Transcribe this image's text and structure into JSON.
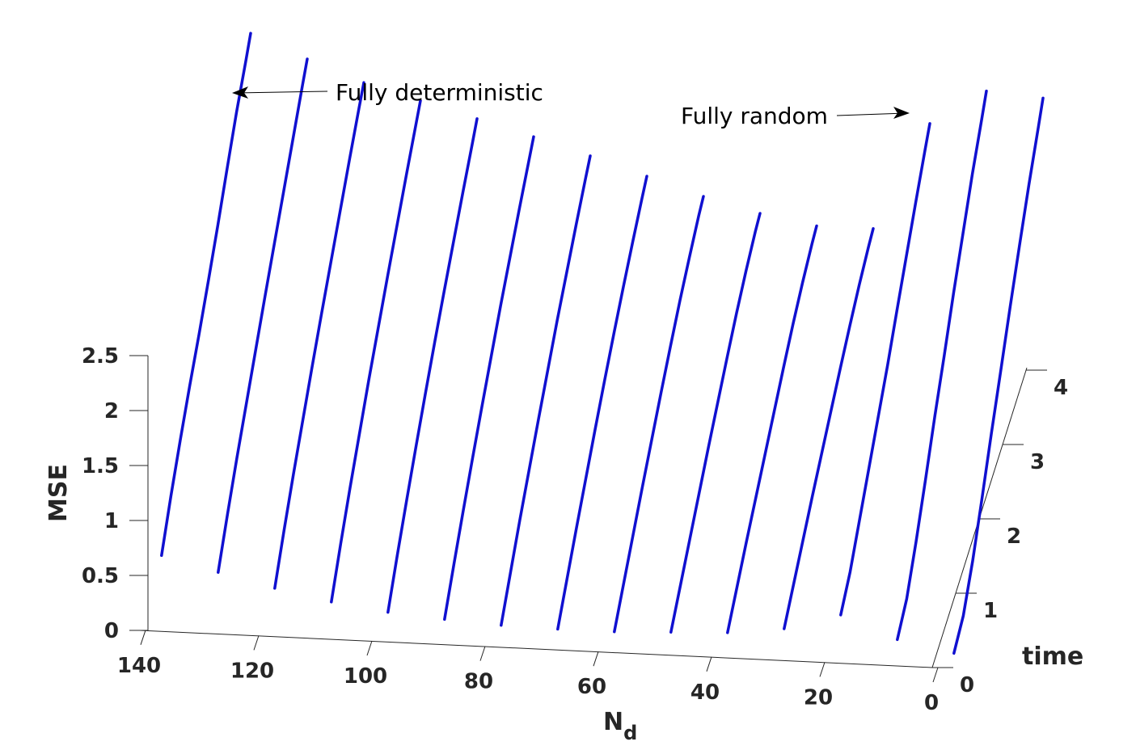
{
  "chart_data": {
    "type": "line",
    "view": "3d",
    "x_axis": {
      "label": "N",
      "label_subscript": "d",
      "lim": [
        0,
        145
      ],
      "ticks": [
        0,
        20,
        40,
        60,
        80,
        100,
        120,
        140
      ],
      "tick_labels": [
        "0",
        "20",
        "40",
        "60",
        "80",
        "100",
        "120",
        "140"
      ]
    },
    "y_axis": {
      "label": "time",
      "lim": [
        0,
        4
      ],
      "ticks": [
        0,
        1,
        2,
        3,
        4
      ],
      "tick_labels": [
        "0",
        "1",
        "2",
        "3",
        "4"
      ]
    },
    "z_axis": {
      "label": "MSE",
      "lim": [
        0,
        2.5
      ],
      "ticks": [
        0,
        0.5,
        1,
        1.5,
        2,
        2.5
      ],
      "tick_labels": [
        "0",
        "0.5",
        "1",
        "1.5",
        "2",
        "2.5"
      ]
    },
    "line_color": "#1010d0",
    "time": [
      0.2,
      0.6,
      1.0,
      1.4,
      1.8,
      2.2,
      2.6,
      3.0,
      3.4,
      3.8,
      4.0
    ],
    "series": [
      {
        "n_d": 138,
        "mse": [
          0.55,
          0.82,
          1.06,
          1.28,
          1.48,
          1.7,
          1.93,
          2.18,
          2.42,
          2.62,
          2.73
        ]
      },
      {
        "n_d": 128,
        "mse": [
          0.42,
          0.68,
          0.92,
          1.14,
          1.36,
          1.58,
          1.79,
          2.0,
          2.21,
          2.42,
          2.52
        ]
      },
      {
        "n_d": 118,
        "mse": [
          0.3,
          0.56,
          0.8,
          1.02,
          1.24,
          1.45,
          1.65,
          1.85,
          2.05,
          2.24,
          2.33
        ]
      },
      {
        "n_d": 108,
        "mse": [
          0.2,
          0.46,
          0.7,
          0.92,
          1.14,
          1.34,
          1.54,
          1.73,
          1.92,
          2.1,
          2.19
        ]
      },
      {
        "n_d": 98,
        "mse": [
          0.13,
          0.38,
          0.61,
          0.83,
          1.04,
          1.24,
          1.43,
          1.61,
          1.79,
          1.96,
          2.05
        ]
      },
      {
        "n_d": 88,
        "mse": [
          0.09,
          0.32,
          0.54,
          0.75,
          0.95,
          1.14,
          1.33,
          1.5,
          1.67,
          1.83,
          1.91
        ]
      },
      {
        "n_d": 78,
        "mse": [
          0.06,
          0.27,
          0.48,
          0.67,
          0.86,
          1.04,
          1.22,
          1.38,
          1.54,
          1.69,
          1.76
        ]
      },
      {
        "n_d": 68,
        "mse": [
          0.05,
          0.24,
          0.43,
          0.61,
          0.79,
          0.96,
          1.12,
          1.27,
          1.41,
          1.54,
          1.6
        ]
      },
      {
        "n_d": 58,
        "mse": [
          0.05,
          0.22,
          0.39,
          0.56,
          0.72,
          0.88,
          1.03,
          1.17,
          1.29,
          1.4,
          1.44
        ]
      },
      {
        "n_d": 48,
        "mse": [
          0.07,
          0.22,
          0.37,
          0.52,
          0.67,
          0.81,
          0.95,
          1.08,
          1.19,
          1.28,
          1.31
        ]
      },
      {
        "n_d": 38,
        "mse": [
          0.09,
          0.23,
          0.37,
          0.5,
          0.63,
          0.76,
          0.89,
          1.01,
          1.11,
          1.19,
          1.22
        ]
      },
      {
        "n_d": 28,
        "mse": [
          0.15,
          0.28,
          0.41,
          0.54,
          0.66,
          0.78,
          0.9,
          1.01,
          1.11,
          1.19,
          1.22
        ]
      },
      {
        "n_d": 18,
        "mse": [
          0.3,
          0.42,
          0.62,
          0.82,
          1.02,
          1.22,
          1.45,
          1.67,
          1.89,
          2.1,
          2.2
        ]
      },
      {
        "n_d": 8,
        "mse": [
          0.1,
          0.2,
          0.45,
          0.74,
          1.05,
          1.33,
          1.63,
          1.9,
          2.17,
          2.4,
          2.52
        ]
      },
      {
        "n_d": -2,
        "mse": [
          0.0,
          0.07,
          0.3,
          0.6,
          0.92,
          1.22,
          1.53,
          1.82,
          2.1,
          2.35,
          2.48
        ]
      }
    ],
    "annotations": [
      {
        "text": "Fully deterministic",
        "points_to_n_d": 140
      },
      {
        "text": "Fully random",
        "points_to_n_d": 0
      }
    ],
    "grid": false,
    "legend": "none"
  }
}
